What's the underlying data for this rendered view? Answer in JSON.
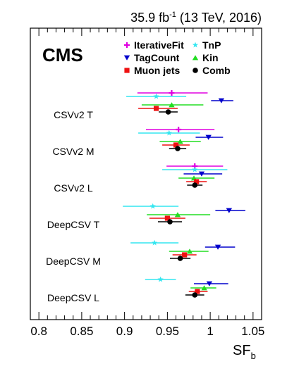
{
  "header": {
    "lumi_prefix": "35.9 fb",
    "lumi_exp": "-1",
    "lumi_suffix": " (13 TeV, 2016)"
  },
  "cms_label": "CMS",
  "chart_data": {
    "type": "scatter",
    "title": "",
    "xlabel_main": "SF",
    "xlabel_sub": "b",
    "xlim": [
      0.79,
      1.06
    ],
    "xticks": [
      "0.8",
      "0.85",
      "0.9",
      "0.95",
      "1",
      "1.05"
    ],
    "xtick_values": [
      0.8,
      0.85,
      0.9,
      0.95,
      1.0,
      1.05
    ],
    "legend_placement": "top",
    "categories": [
      "CSVv2 T",
      "CSVv2 M",
      "CSVv2 L",
      "DeepCSV T",
      "DeepCSV M",
      "DeepCSV L"
    ],
    "series": [
      {
        "name": "IterativeFit",
        "color": "#e000e0",
        "marker": "plus",
        "values": [
          0.955,
          0.963,
          0.982,
          null,
          null,
          null
        ],
        "xerr_low": [
          0.04,
          0.038,
          0.033,
          null,
          null,
          null
        ],
        "xerr_high": [
          0.042,
          0.042,
          0.033,
          null,
          null,
          null
        ]
      },
      {
        "name": "TnP",
        "color": "#33e6f0",
        "marker": "star",
        "values": [
          0.937,
          0.952,
          0.982,
          0.933,
          0.935,
          0.942
        ],
        "xerr_low": [
          0.035,
          0.036,
          0.038,
          0.035,
          0.028,
          0.018
        ],
        "xerr_high": [
          0.035,
          0.036,
          0.038,
          0.03,
          0.028,
          0.018
        ]
      },
      {
        "name": "TagCount",
        "color": "#0000cc",
        "marker": "triangle-down",
        "values": [
          1.013,
          0.998,
          0.99,
          1.022,
          1.009,
          0.999
        ],
        "xerr_low": [
          0.012,
          0.015,
          0.021,
          0.016,
          0.015,
          0.018
        ],
        "xerr_high": [
          0.014,
          0.017,
          0.024,
          0.019,
          0.02,
          0.022
        ]
      },
      {
        "name": "Kin",
        "color": "#22dd22",
        "marker": "triangle-up",
        "values": [
          0.955,
          0.965,
          0.981,
          0.962,
          0.976,
          0.993
        ],
        "xerr_low": [
          0.035,
          0.024,
          0.018,
          0.036,
          0.024,
          0.016
        ],
        "xerr_high": [
          0.037,
          0.024,
          0.024,
          0.038,
          0.022,
          0.014
        ]
      },
      {
        "name": "Muon jets",
        "color": "#ee1111",
        "marker": "square",
        "values": [
          0.937,
          0.96,
          0.984,
          0.95,
          0.97,
          0.985
        ],
        "xerr_low": [
          0.021,
          0.016,
          0.012,
          0.021,
          0.014,
          0.01
        ],
        "xerr_high": [
          0.025,
          0.016,
          0.012,
          0.021,
          0.014,
          0.012
        ]
      },
      {
        "name": "Comb",
        "color": "#000000",
        "marker": "circle",
        "values": [
          0.951,
          0.962,
          0.982,
          0.953,
          0.965,
          0.982
        ],
        "xerr_low": [
          0.011,
          0.01,
          0.009,
          0.014,
          0.012,
          0.011
        ],
        "xerr_high": [
          0.011,
          0.01,
          0.009,
          0.014,
          0.012,
          0.011
        ]
      }
    ]
  }
}
